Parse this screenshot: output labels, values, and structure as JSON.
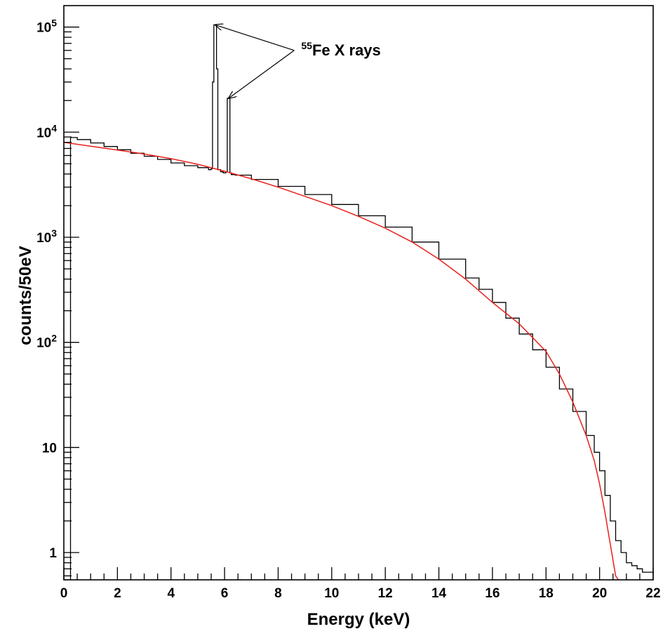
{
  "chart_data": {
    "type": "line",
    "xlabel": "Energy (keV)",
    "ylabel": "counts/50eV",
    "xlim": [
      0,
      22
    ],
    "ylim": [
      0.55,
      160000
    ],
    "y_scale": "log",
    "grid": false,
    "x_ticks": [
      "0",
      "2",
      "4",
      "6",
      "8",
      "10",
      "12",
      "14",
      "16",
      "18",
      "20",
      "22"
    ],
    "y_ticks": [
      {
        "value": 1,
        "label": "1"
      },
      {
        "value": 10,
        "label": "10"
      },
      {
        "value": 100,
        "base": "10",
        "exp": "2"
      },
      {
        "value": 1000,
        "base": "10",
        "exp": "3"
      },
      {
        "value": 10000,
        "base": "10",
        "exp": "4"
      },
      {
        "value": 100000,
        "base": "10",
        "exp": "5"
      }
    ],
    "annotation": {
      "sup": "55",
      "text": "Fe X rays",
      "anchor": {
        "x": 8.6,
        "y": 60000
      },
      "targets": [
        {
          "x": 5.65,
          "y": 105000
        },
        {
          "x": 6.15,
          "y": 21000
        }
      ]
    },
    "series": [
      {
        "name": "",
        "style": "histogram",
        "color": "#000000",
        "x": [
          0.0,
          0.25,
          0.5,
          1.0,
          1.5,
          2.0,
          2.5,
          3.0,
          3.5,
          4.0,
          4.5,
          5.0,
          5.4,
          5.5,
          5.55,
          5.6,
          5.7,
          5.75,
          5.85,
          5.95,
          6.05,
          6.1,
          6.2,
          6.25,
          6.4,
          7.0,
          8.0,
          9.0,
          10.0,
          11.0,
          12.0,
          13.0,
          14.0,
          15.0,
          15.5,
          16.0,
          16.5,
          17.0,
          17.5,
          18.0,
          18.5,
          19.0,
          19.5,
          19.8,
          20.0,
          20.2,
          20.4,
          20.6,
          20.8,
          21.0,
          21.2,
          21.4,
          21.6,
          21.8,
          22.0
        ],
        "y": [
          0.55,
          8900,
          8500,
          7900,
          7300,
          6800,
          6300,
          5900,
          5500,
          5100,
          4800,
          4600,
          4400,
          4500,
          30000,
          105000,
          40000,
          4400,
          4200,
          4100,
          4200,
          21000,
          4100,
          3950,
          3900,
          3550,
          3050,
          2550,
          2050,
          1600,
          1250,
          900,
          620,
          410,
          320,
          240,
          170,
          120,
          85,
          58,
          36,
          22,
          13,
          9,
          6,
          3.5,
          2,
          1.3,
          1.0,
          0.8,
          0.75,
          0.7,
          0.65,
          0.65,
          0.6
        ]
      },
      {
        "name": "",
        "style": "fit",
        "color": "#e8201c",
        "x": [
          0.0,
          1.0,
          2.0,
          3.0,
          4.0,
          5.0,
          6.0,
          7.0,
          8.0,
          9.0,
          10.0,
          11.0,
          12.0,
          13.0,
          14.0,
          15.0,
          16.0,
          17.0,
          18.0,
          18.5,
          19.0,
          19.5,
          19.8,
          20.0,
          20.2,
          20.4,
          20.6,
          20.7
        ],
        "y": [
          8000,
          7350,
          6750,
          6200,
          5600,
          4950,
          4250,
          3600,
          3000,
          2450,
          2000,
          1580,
          1220,
          900,
          620,
          400,
          240,
          150,
          82,
          50,
          27,
          13,
          7.5,
          4.5,
          2.4,
          1.2,
          0.6,
          0.4
        ]
      }
    ]
  }
}
